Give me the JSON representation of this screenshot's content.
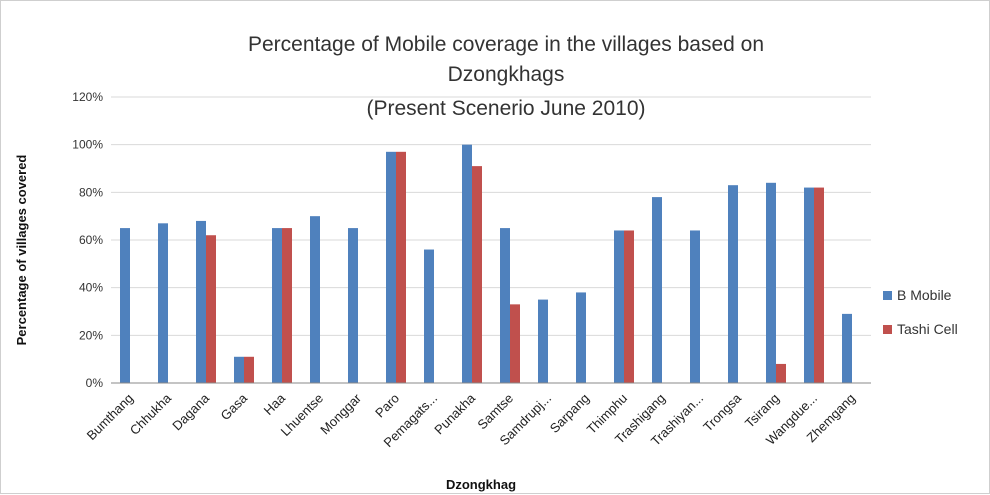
{
  "chart_data": {
    "type": "bar",
    "title_lines": [
      "Percentage of Mobile coverage in the villages based on",
      "Dzongkhags",
      "(Present Scenerio June 2010)"
    ],
    "xlabel": "Dzongkhag",
    "ylabel": "Percentage of villages covered",
    "ylim": [
      0,
      120
    ],
    "y_ticks": [
      "0%",
      "20%",
      "40%",
      "60%",
      "80%",
      "100%",
      "120%"
    ],
    "grid": true,
    "legend_position": "right",
    "categories": [
      "Bumthang",
      "Chhukha",
      "Dagana",
      "Gasa",
      "Haa",
      "Lhuentse",
      "Monggar",
      "Paro",
      "Pemagats...",
      "Punakha",
      "Samtse",
      "Samdrupj...",
      "Sarpang",
      "Thimphu",
      "Trashigang",
      "Trashiyan...",
      "Trongsa",
      "Tsirang",
      "Wangdue...",
      "Zhemgang"
    ],
    "series": [
      {
        "name": "B Mobile",
        "color": "#4f81bd",
        "values": [
          65,
          67,
          68,
          11,
          65,
          70,
          65,
          97,
          56,
          100,
          65,
          35,
          38,
          64,
          78,
          64,
          83,
          84,
          82,
          29
        ]
      },
      {
        "name": "Tashi Cell",
        "color": "#c0504d",
        "values": [
          0,
          0,
          62,
          11,
          65,
          0,
          0,
          97,
          0,
          91,
          33,
          0,
          0,
          64,
          0,
          0,
          0,
          8,
          82,
          0
        ]
      }
    ]
  }
}
